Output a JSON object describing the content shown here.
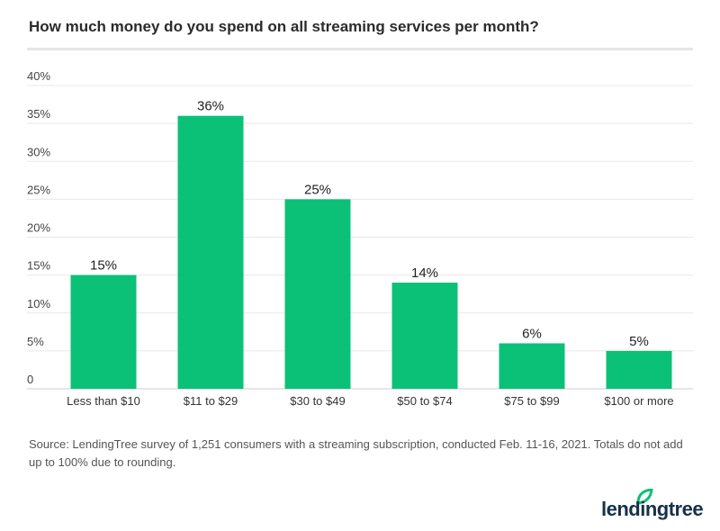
{
  "chart_data": {
    "type": "bar",
    "title": "How much money do you spend on all streaming services per month?",
    "categories": [
      "Less than $10",
      "$11 to $29",
      "$30 to $49",
      "$50 to $74",
      "$75 to $99",
      "$100 or more"
    ],
    "values": [
      15,
      36,
      25,
      14,
      6,
      5
    ],
    "data_labels": [
      "15%",
      "36%",
      "25%",
      "14%",
      "6%",
      "5%"
    ],
    "ylim": [
      0,
      40
    ],
    "yticks": [
      0,
      5,
      10,
      15,
      20,
      25,
      30,
      35,
      40
    ],
    "ytick_labels": [
      "0",
      "5%",
      "10%",
      "15%",
      "20%",
      "25%",
      "30%",
      "35%",
      "40%"
    ],
    "grid": true,
    "bar_color": "#0bc178"
  },
  "source": "Source: LendingTree survey of 1,251 consumers with a streaming subscription, conducted Feb. 11-16, 2021. Totals do not add up to 100% due to rounding.",
  "logo": {
    "text": "lendingtree",
    "leaf_color": "#0bc178"
  }
}
